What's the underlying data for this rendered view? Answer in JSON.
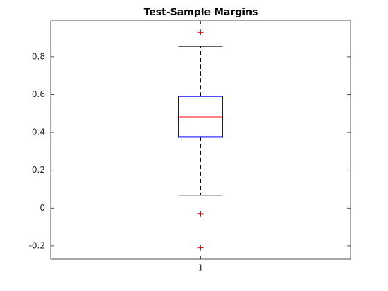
{
  "chart_data": {
    "type": "box",
    "title": "Test-Sample Margins",
    "categories": [
      "1"
    ],
    "boxes": [
      {
        "q1": 0.375,
        "median": 0.481,
        "q3": 0.59,
        "whisker_low": 0.068,
        "whisker_high": 0.854,
        "outliers": [
          0.93,
          -0.031,
          -0.21
        ]
      }
    ],
    "box_color": "#0000ff",
    "median_color": "#ff0000",
    "whisker_color": "#000000",
    "outlier_color": "#ff0000",
    "ylim": [
      -0.27,
      0.99
    ],
    "yticks": [
      -0.2,
      0,
      0.2,
      0.4,
      0.6,
      0.8
    ],
    "grid": false
  }
}
